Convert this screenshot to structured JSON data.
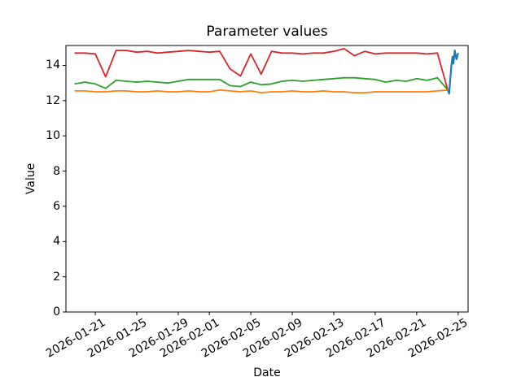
{
  "figure": {
    "background": "#ffffff",
    "spine_color": "#000000",
    "text_color": "#000000"
  },
  "chart_data": {
    "type": "line",
    "title": "Parameter values",
    "xlabel": "Date",
    "ylabel": "Value",
    "grid": false,
    "legend": "none",
    "ylim": [
      0,
      15.13
    ],
    "yticks": [
      0,
      2,
      4,
      6,
      8,
      10,
      12,
      14
    ],
    "xlim": [
      "2026-01-18T04:00",
      "2026-02-25T23:00"
    ],
    "xticks": [
      "2026-01-21",
      "2026-01-25",
      "2026-01-29",
      "2026-02-01",
      "2026-02-05",
      "2026-02-09",
      "2026-02-13",
      "2026-02-17",
      "2026-02-21",
      "2026-02-25"
    ],
    "xtick_rotation_deg": 30,
    "series": [
      {
        "name": "red-series",
        "color": "#d62728",
        "linewidth": 1.8,
        "points": [
          [
            "2026-01-19",
            14.7
          ],
          [
            "2026-01-20",
            14.7
          ],
          [
            "2026-01-21",
            14.65
          ],
          [
            "2026-01-22",
            13.35
          ],
          [
            "2026-01-23",
            14.85
          ],
          [
            "2026-01-24",
            14.85
          ],
          [
            "2026-01-25",
            14.75
          ],
          [
            "2026-01-26",
            14.8
          ],
          [
            "2026-01-27",
            14.7
          ],
          [
            "2026-01-28",
            14.75
          ],
          [
            "2026-01-29",
            14.8
          ],
          [
            "2026-01-30",
            14.85
          ],
          [
            "2026-01-31",
            14.8
          ],
          [
            "2026-02-01",
            14.75
          ],
          [
            "2026-02-02",
            14.8
          ],
          [
            "2026-02-03",
            13.8
          ],
          [
            "2026-02-04",
            13.4
          ],
          [
            "2026-02-05",
            14.65
          ],
          [
            "2026-02-06",
            13.5
          ],
          [
            "2026-02-07",
            14.8
          ],
          [
            "2026-02-08",
            14.7
          ],
          [
            "2026-02-09",
            14.7
          ],
          [
            "2026-02-10",
            14.65
          ],
          [
            "2026-02-11",
            14.7
          ],
          [
            "2026-02-12",
            14.7
          ],
          [
            "2026-02-13",
            14.8
          ],
          [
            "2026-02-14",
            14.95
          ],
          [
            "2026-02-15",
            14.55
          ],
          [
            "2026-02-16",
            14.8
          ],
          [
            "2026-02-17",
            14.65
          ],
          [
            "2026-02-18",
            14.7
          ],
          [
            "2026-02-19",
            14.7
          ],
          [
            "2026-02-20",
            14.7
          ],
          [
            "2026-02-21",
            14.7
          ],
          [
            "2026-02-22",
            14.65
          ],
          [
            "2026-02-23",
            14.7
          ],
          [
            "2026-02-24",
            12.6
          ]
        ]
      },
      {
        "name": "green-series",
        "color": "#2ca02c",
        "linewidth": 1.8,
        "points": [
          [
            "2026-01-19",
            12.95
          ],
          [
            "2026-01-20",
            13.05
          ],
          [
            "2026-01-21",
            12.95
          ],
          [
            "2026-01-22",
            12.7
          ],
          [
            "2026-01-23",
            13.15
          ],
          [
            "2026-01-24",
            13.1
          ],
          [
            "2026-01-25",
            13.05
          ],
          [
            "2026-01-26",
            13.1
          ],
          [
            "2026-01-27",
            13.05
          ],
          [
            "2026-01-28",
            13.0
          ],
          [
            "2026-01-29",
            13.1
          ],
          [
            "2026-01-30",
            13.2
          ],
          [
            "2026-01-31",
            13.2
          ],
          [
            "2026-02-01",
            13.2
          ],
          [
            "2026-02-02",
            13.2
          ],
          [
            "2026-02-03",
            12.85
          ],
          [
            "2026-02-04",
            12.8
          ],
          [
            "2026-02-05",
            13.05
          ],
          [
            "2026-02-06",
            12.9
          ],
          [
            "2026-02-07",
            12.95
          ],
          [
            "2026-02-08",
            13.1
          ],
          [
            "2026-02-09",
            13.15
          ],
          [
            "2026-02-10",
            13.1
          ],
          [
            "2026-02-11",
            13.15
          ],
          [
            "2026-02-12",
            13.2
          ],
          [
            "2026-02-13",
            13.25
          ],
          [
            "2026-02-14",
            13.3
          ],
          [
            "2026-02-15",
            13.3
          ],
          [
            "2026-02-16",
            13.25
          ],
          [
            "2026-02-17",
            13.2
          ],
          [
            "2026-02-18",
            13.05
          ],
          [
            "2026-02-19",
            13.15
          ],
          [
            "2026-02-20",
            13.1
          ],
          [
            "2026-02-21",
            13.25
          ],
          [
            "2026-02-22",
            13.15
          ],
          [
            "2026-02-23",
            13.3
          ],
          [
            "2026-02-24",
            12.6
          ]
        ]
      },
      {
        "name": "orange-series",
        "color": "#ff7f0e",
        "linewidth": 1.8,
        "points": [
          [
            "2026-01-19",
            12.55
          ],
          [
            "2026-01-20",
            12.55
          ],
          [
            "2026-01-21",
            12.5
          ],
          [
            "2026-01-22",
            12.5
          ],
          [
            "2026-01-23",
            12.55
          ],
          [
            "2026-01-24",
            12.55
          ],
          [
            "2026-01-25",
            12.5
          ],
          [
            "2026-01-26",
            12.5
          ],
          [
            "2026-01-27",
            12.55
          ],
          [
            "2026-01-28",
            12.5
          ],
          [
            "2026-01-29",
            12.5
          ],
          [
            "2026-01-30",
            12.55
          ],
          [
            "2026-01-31",
            12.5
          ],
          [
            "2026-02-01",
            12.5
          ],
          [
            "2026-02-02",
            12.6
          ],
          [
            "2026-02-03",
            12.55
          ],
          [
            "2026-02-04",
            12.5
          ],
          [
            "2026-02-05",
            12.55
          ],
          [
            "2026-02-06",
            12.45
          ],
          [
            "2026-02-07",
            12.5
          ],
          [
            "2026-02-08",
            12.5
          ],
          [
            "2026-02-09",
            12.55
          ],
          [
            "2026-02-10",
            12.5
          ],
          [
            "2026-02-11",
            12.5
          ],
          [
            "2026-02-12",
            12.55
          ],
          [
            "2026-02-13",
            12.5
          ],
          [
            "2026-02-14",
            12.5
          ],
          [
            "2026-02-15",
            12.45
          ],
          [
            "2026-02-16",
            12.45
          ],
          [
            "2026-02-17",
            12.5
          ],
          [
            "2026-02-18",
            12.5
          ],
          [
            "2026-02-19",
            12.5
          ],
          [
            "2026-02-20",
            12.5
          ],
          [
            "2026-02-21",
            12.5
          ],
          [
            "2026-02-22",
            12.5
          ],
          [
            "2026-02-23",
            12.55
          ],
          [
            "2026-02-24",
            12.6
          ]
        ]
      },
      {
        "name": "blue-series",
        "color": "#1f77b4",
        "linewidth": 2.2,
        "points": [
          [
            "2026-02-24T00:00",
            12.6
          ],
          [
            "2026-02-24T03:00",
            12.4
          ],
          [
            "2026-02-24T08:00",
            13.9
          ],
          [
            "2026-02-24T11:00",
            14.5
          ],
          [
            "2026-02-24T13:00",
            14.1
          ],
          [
            "2026-02-24T16:00",
            14.85
          ],
          [
            "2026-02-24T20:00",
            14.35
          ],
          [
            "2026-02-25T00:00",
            14.7
          ]
        ]
      }
    ]
  }
}
